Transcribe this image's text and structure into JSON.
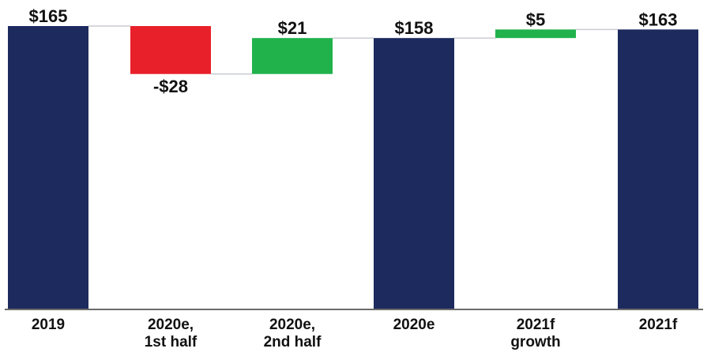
{
  "chart_data": {
    "type": "bar",
    "subtype": "waterfall",
    "categories": [
      [
        "2019"
      ],
      [
        "2020e,",
        "1st half"
      ],
      [
        "2020e,",
        "2nd half"
      ],
      [
        "2020e"
      ],
      [
        "2021f",
        "growth"
      ],
      [
        "2021f"
      ]
    ],
    "values": [
      165,
      -28,
      21,
      158,
      5,
      163
    ],
    "kinds": [
      "total",
      "delta",
      "delta",
      "total",
      "delta",
      "total"
    ],
    "value_labels": [
      "$165",
      "-$28",
      "$21",
      "$158",
      "$5",
      "$163"
    ],
    "ylim": [
      0,
      165
    ],
    "colors": {
      "total": "#1c2a5e",
      "decrease": "#e8202a",
      "increase": "#21b24c"
    },
    "grid": false,
    "legend": "none"
  }
}
